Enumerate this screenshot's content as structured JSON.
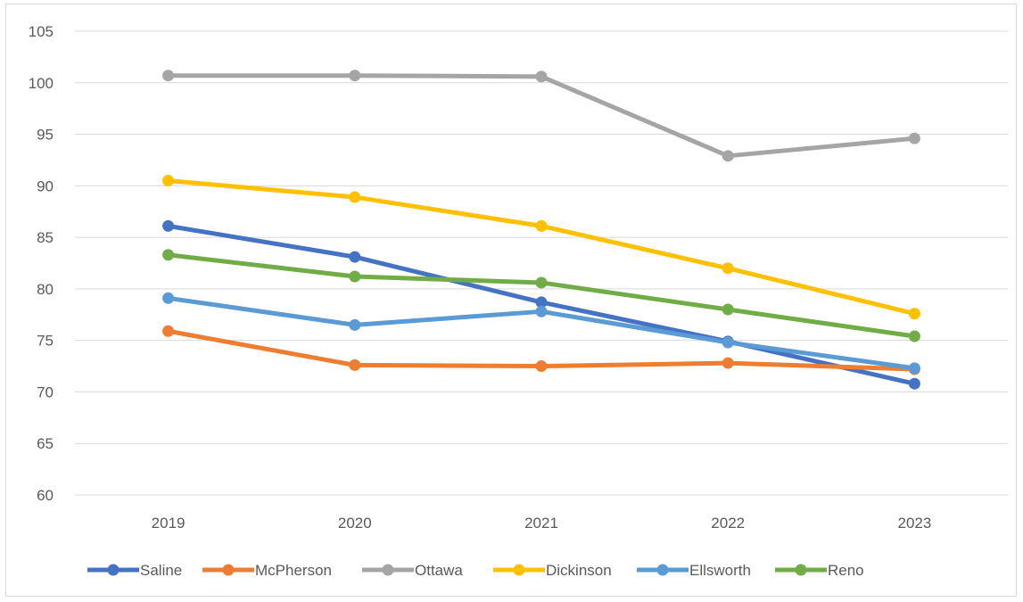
{
  "chart_data": {
    "type": "line",
    "title": "",
    "xlabel": "",
    "ylabel": "",
    "categories": [
      "2019",
      "2020",
      "2021",
      "2022",
      "2023"
    ],
    "ylim": [
      60,
      105
    ],
    "yticks": [
      60,
      65,
      70,
      75,
      80,
      85,
      90,
      95,
      100,
      105
    ],
    "grid": true,
    "legend_position": "bottom",
    "series": [
      {
        "name": "Saline",
        "color": "#4472C4",
        "values": [
          86.1,
          83.1,
          78.7,
          74.9,
          70.8
        ]
      },
      {
        "name": "McPherson",
        "color": "#ED7D31",
        "values": [
          75.9,
          72.6,
          72.5,
          72.8,
          72.2
        ]
      },
      {
        "name": "Ottawa",
        "color": "#A5A5A5",
        "values": [
          100.7,
          100.7,
          100.6,
          92.9,
          94.6
        ]
      },
      {
        "name": "Dickinson",
        "color": "#FFC000",
        "values": [
          90.5,
          88.9,
          86.1,
          82.0,
          77.6
        ]
      },
      {
        "name": "Ellsworth",
        "color": "#5B9BD5",
        "values": [
          79.1,
          76.5,
          77.8,
          74.8,
          72.3
        ]
      },
      {
        "name": "Reno",
        "color": "#70AD47",
        "values": [
          83.3,
          81.2,
          80.6,
          78.0,
          75.4
        ]
      }
    ]
  }
}
